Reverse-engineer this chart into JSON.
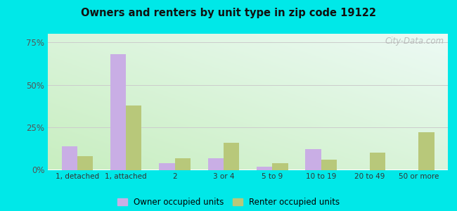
{
  "title": "Owners and renters by unit type in zip code 19122",
  "categories": [
    "1, detached",
    "1, attached",
    "2",
    "3 or 4",
    "5 to 9",
    "10 to 19",
    "20 to 49",
    "50 or more"
  ],
  "owner_values": [
    14,
    68,
    4,
    7,
    2,
    12,
    0,
    0
  ],
  "renter_values": [
    8,
    38,
    7,
    16,
    4,
    6,
    10,
    22
  ],
  "owner_color": "#c9aee5",
  "renter_color": "#b8c87a",
  "ylim": [
    0,
    80
  ],
  "yticks": [
    0,
    25,
    50,
    75
  ],
  "ytick_labels": [
    "0%",
    "25%",
    "50%",
    "75%"
  ],
  "bg_top_color": "#edfaf5",
  "bg_bottom_color": "#c8eec0",
  "outer_background": "#00e8e8",
  "grid_color": "#cccccc",
  "legend_owner": "Owner occupied units",
  "legend_renter": "Renter occupied units",
  "watermark": "City-Data.com",
  "bar_width": 0.32
}
